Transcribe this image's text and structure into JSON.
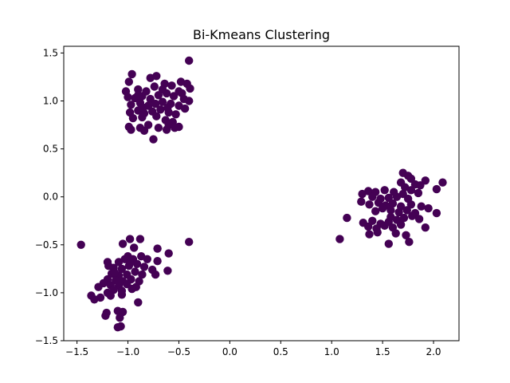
{
  "chart_data": {
    "type": "scatter",
    "title": "Bi-Kmeans Clustering",
    "xlabel": "",
    "ylabel": "",
    "xlim": [
      -1.63,
      2.25
    ],
    "ylim": [
      -1.5,
      1.57
    ],
    "x_ticks": [
      -1.5,
      -1.0,
      -0.5,
      0.0,
      0.5,
      1.0,
      1.5,
      2.0
    ],
    "x_tick_labels": [
      "−1.5",
      "−1.0",
      "−0.5",
      "0.0",
      "0.5",
      "1.0",
      "1.5",
      "2.0"
    ],
    "y_ticks": [
      -1.5,
      -1.0,
      -0.5,
      0.0,
      0.5,
      1.0,
      1.5
    ],
    "y_tick_labels": [
      "−1.5",
      "−1.0",
      "−0.5",
      "0.0",
      "0.5",
      "1.0",
      "1.5"
    ],
    "grid": false,
    "marker_color": "#440154",
    "series": [
      {
        "points": [
          [
            -0.4,
            1.42
          ],
          [
            -0.96,
            1.28
          ],
          [
            -0.78,
            1.24
          ],
          [
            -0.72,
            1.26
          ],
          [
            -0.99,
            1.2
          ],
          [
            -1.02,
            1.1
          ],
          [
            -0.9,
            1.12
          ],
          [
            -0.82,
            1.1
          ],
          [
            -0.74,
            1.15
          ],
          [
            -0.64,
            1.18
          ],
          [
            -0.57,
            1.16
          ],
          [
            -0.48,
            1.2
          ],
          [
            -0.42,
            1.18
          ],
          [
            -0.39,
            1.13
          ],
          [
            -1.0,
            1.04
          ],
          [
            -0.93,
            1.03
          ],
          [
            -0.86,
            1.05
          ],
          [
            -0.78,
            1.02
          ],
          [
            -0.7,
            1.06
          ],
          [
            -0.62,
            1.08
          ],
          [
            -0.55,
            1.05
          ],
          [
            -0.47,
            1.08
          ],
          [
            -0.4,
            1.0
          ],
          [
            -0.97,
            0.96
          ],
          [
            -0.88,
            0.98
          ],
          [
            -0.8,
            0.95
          ],
          [
            -0.73,
            0.97
          ],
          [
            -0.66,
            0.99
          ],
          [
            -0.58,
            0.97
          ],
          [
            -0.5,
            0.95
          ],
          [
            -0.44,
            0.92
          ],
          [
            -0.98,
            0.88
          ],
          [
            -0.9,
            0.9
          ],
          [
            -0.84,
            0.87
          ],
          [
            -0.76,
            0.89
          ],
          [
            -0.68,
            0.91
          ],
          [
            -0.6,
            0.88
          ],
          [
            -0.53,
            0.86
          ],
          [
            -0.95,
            0.82
          ],
          [
            -0.86,
            0.83
          ],
          [
            -0.72,
            0.84
          ],
          [
            -0.63,
            0.8
          ],
          [
            -0.56,
            0.78
          ],
          [
            -0.99,
            0.73
          ],
          [
            -0.88,
            0.72
          ],
          [
            -0.8,
            0.75
          ],
          [
            -0.7,
            0.72
          ],
          [
            -0.62,
            0.7
          ],
          [
            -0.5,
            0.73
          ],
          [
            -0.97,
            0.7
          ],
          [
            -0.84,
            0.69
          ],
          [
            -0.75,
            0.6
          ],
          [
            -0.6,
            0.75
          ],
          [
            -0.54,
            0.72
          ],
          [
            -0.9,
            1.06
          ],
          [
            -0.66,
            1.12
          ],
          [
            -0.5,
            1.1
          ],
          [
            -0.45,
            1.02
          ],
          [
            -0.85,
            0.93
          ],
          [
            -0.61,
            0.93
          ],
          [
            1.7,
            0.25
          ],
          [
            1.75,
            0.22
          ],
          [
            1.78,
            0.19
          ],
          [
            1.92,
            0.17
          ],
          [
            2.09,
            0.15
          ],
          [
            1.68,
            0.15
          ],
          [
            1.82,
            0.13
          ],
          [
            1.87,
            0.12
          ],
          [
            1.72,
            0.1
          ],
          [
            1.78,
            0.07
          ],
          [
            2.03,
            0.08
          ],
          [
            1.36,
            0.06
          ],
          [
            1.43,
            0.05
          ],
          [
            1.52,
            0.07
          ],
          [
            1.61,
            0.05
          ],
          [
            1.7,
            0.03
          ],
          [
            1.85,
            0.04
          ],
          [
            1.3,
            0.03
          ],
          [
            1.4,
            0.0
          ],
          [
            1.48,
            -0.02
          ],
          [
            1.56,
            -0.01
          ],
          [
            1.64,
            0.0
          ],
          [
            1.75,
            -0.02
          ],
          [
            1.29,
            -0.05
          ],
          [
            1.37,
            -0.08
          ],
          [
            1.46,
            -0.06
          ],
          [
            1.53,
            -0.09
          ],
          [
            1.6,
            -0.07
          ],
          [
            1.68,
            -0.1
          ],
          [
            1.78,
            -0.08
          ],
          [
            1.88,
            -0.1
          ],
          [
            1.95,
            -0.12
          ],
          [
            2.03,
            -0.17
          ],
          [
            1.43,
            -0.15
          ],
          [
            1.5,
            -0.12
          ],
          [
            1.58,
            -0.14
          ],
          [
            1.66,
            -0.16
          ],
          [
            1.74,
            -0.14
          ],
          [
            1.82,
            -0.17
          ],
          [
            1.15,
            -0.22
          ],
          [
            1.31,
            -0.27
          ],
          [
            1.4,
            -0.25
          ],
          [
            1.48,
            -0.28
          ],
          [
            1.56,
            -0.26
          ],
          [
            1.64,
            -0.24
          ],
          [
            1.71,
            -0.22
          ],
          [
            1.79,
            -0.2
          ],
          [
            1.36,
            -0.31
          ],
          [
            1.44,
            -0.33
          ],
          [
            1.52,
            -0.3
          ],
          [
            1.6,
            -0.32
          ],
          [
            1.68,
            -0.29
          ],
          [
            1.92,
            -0.32
          ],
          [
            1.37,
            -0.39
          ],
          [
            1.45,
            -0.37
          ],
          [
            1.63,
            -0.38
          ],
          [
            1.73,
            -0.4
          ],
          [
            1.08,
            -0.44
          ],
          [
            1.56,
            -0.49
          ],
          [
            1.76,
            -0.47
          ],
          [
            1.58,
            -0.21
          ],
          [
            1.86,
            -0.23
          ],
          [
            -0.4,
            -0.47
          ],
          [
            -1.46,
            -0.5
          ],
          [
            -0.88,
            -0.44
          ],
          [
            -0.98,
            -0.44
          ],
          [
            -1.05,
            -0.49
          ],
          [
            -0.71,
            -0.54
          ],
          [
            -0.94,
            -0.53
          ],
          [
            -0.6,
            -0.59
          ],
          [
            -1.0,
            -0.62
          ],
          [
            -0.87,
            -0.62
          ],
          [
            -0.81,
            -0.65
          ],
          [
            -0.95,
            -0.65
          ],
          [
            -1.03,
            -0.65
          ],
          [
            -0.71,
            -0.67
          ],
          [
            -1.09,
            -0.68
          ],
          [
            -1.2,
            -0.68
          ],
          [
            -0.91,
            -0.7
          ],
          [
            -0.84,
            -0.73
          ],
          [
            -0.99,
            -0.72
          ],
          [
            -1.06,
            -0.75
          ],
          [
            -1.14,
            -0.74
          ],
          [
            -1.19,
            -0.72
          ],
          [
            -0.76,
            -0.76
          ],
          [
            -0.61,
            -0.77
          ],
          [
            -0.93,
            -0.78
          ],
          [
            -1.01,
            -0.81
          ],
          [
            -1.09,
            -0.82
          ],
          [
            -1.16,
            -0.8
          ],
          [
            -0.86,
            -0.81
          ],
          [
            -0.73,
            -0.81
          ],
          [
            -0.97,
            -0.86
          ],
          [
            -1.05,
            -0.88
          ],
          [
            -1.12,
            -0.87
          ],
          [
            -1.2,
            -0.86
          ],
          [
            -0.89,
            -0.88
          ],
          [
            -1.24,
            -0.9
          ],
          [
            -1.17,
            -0.92
          ],
          [
            -1.09,
            -0.93
          ],
          [
            -1.01,
            -0.91
          ],
          [
            -0.92,
            -0.94
          ],
          [
            -1.29,
            -0.94
          ],
          [
            -1.14,
            -0.97
          ],
          [
            -1.06,
            -0.98
          ],
          [
            -0.96,
            -0.96
          ],
          [
            -1.2,
            -1.0
          ],
          [
            -1.36,
            -1.03
          ],
          [
            -1.27,
            -1.05
          ],
          [
            -1.17,
            -1.03
          ],
          [
            -1.06,
            -1.02
          ],
          [
            -1.33,
            -1.07
          ],
          [
            -0.9,
            -1.1
          ],
          [
            -1.1,
            -1.19
          ],
          [
            -1.05,
            -1.2
          ],
          [
            -1.21,
            -1.21
          ],
          [
            -1.22,
            -1.24
          ],
          [
            -1.08,
            -1.26
          ],
          [
            -1.07,
            -1.35
          ],
          [
            -1.1,
            -1.36
          ],
          [
            -0.98,
            -0.69
          ],
          [
            -1.13,
            -0.79
          ]
        ]
      }
    ]
  }
}
